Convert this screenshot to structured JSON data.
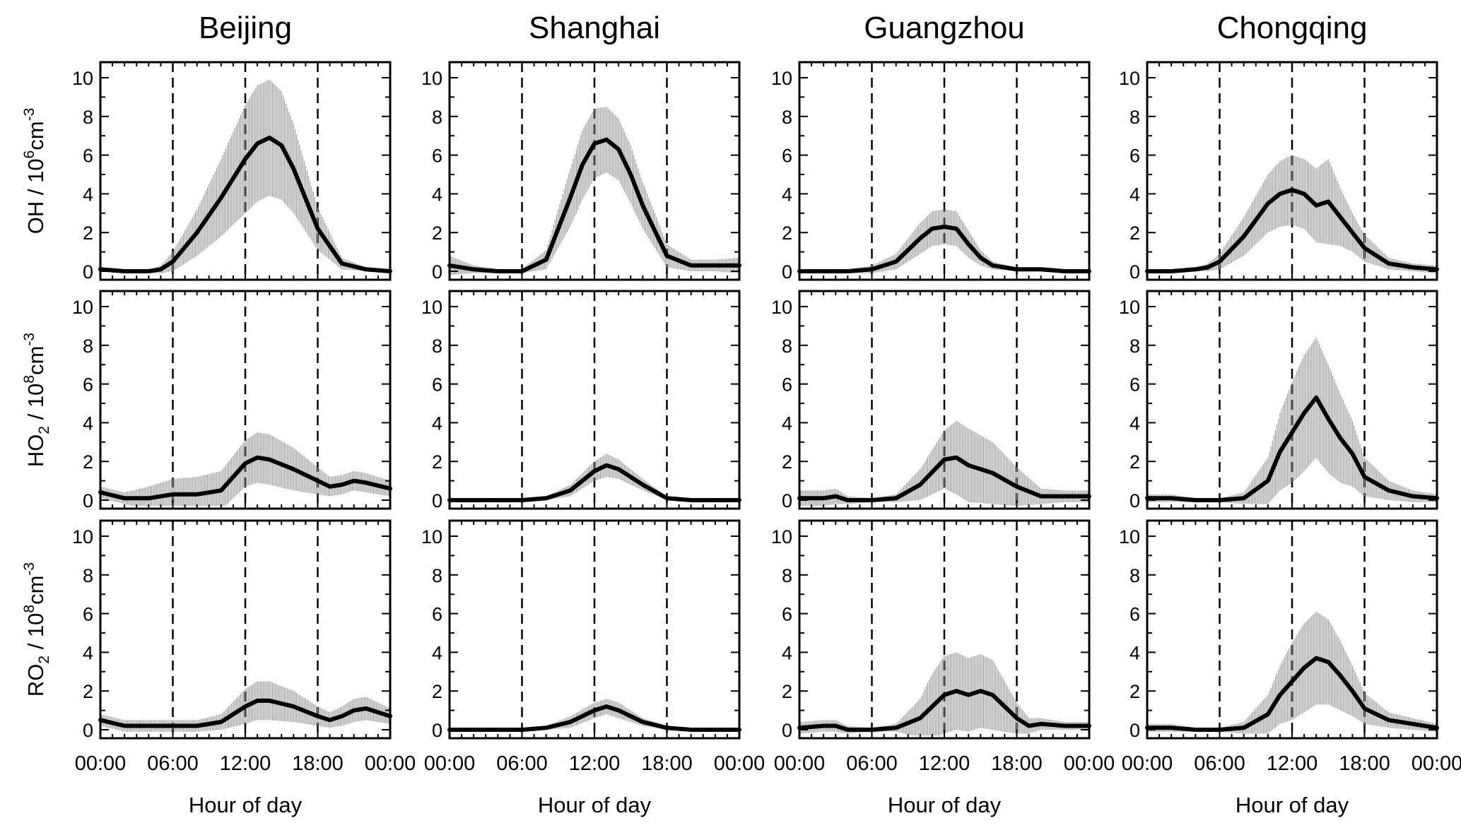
{
  "figure": {
    "columns": [
      "Beijing",
      "Shanghai",
      "Guangzhou",
      "Chongqing"
    ],
    "x_tick_labels": [
      "00:00",
      "06:00",
      "12:00",
      "18:00",
      "00:00"
    ],
    "xlabel": "Hour of day",
    "row_labels": [
      {
        "species": "OH",
        "sub": "",
        "unit_text": " / 10",
        "exp": "6",
        "unit_tail": "cm",
        "unit_exp": "-3"
      },
      {
        "species": "HO",
        "sub": "2",
        "unit_text": " / 10",
        "exp": "8",
        "unit_tail": "cm",
        "unit_exp": "-3"
      },
      {
        "species": "RO",
        "sub": "2",
        "unit_text": " / 10",
        "exp": "8",
        "unit_tail": "cm",
        "unit_exp": "-3"
      }
    ],
    "y_tick_labels": [
      "0",
      "2",
      "4",
      "6",
      "8",
      "10"
    ],
    "colors": {
      "line": "#000000",
      "errorbar": "#8a8a8a",
      "guide": "#000000"
    }
  },
  "chart_data": [
    {
      "type": "line",
      "city": "Beijing",
      "species": "OH",
      "unit": "10^6 cm^-3",
      "xlim": [
        0,
        24
      ],
      "ylim": [
        0,
        10
      ],
      "vlines": [
        6,
        12,
        18
      ],
      "x": [
        0,
        2,
        4,
        5,
        6,
        8,
        10,
        12,
        13,
        14,
        15,
        16,
        18,
        20,
        22,
        24
      ],
      "y": [
        0.1,
        0.0,
        0.0,
        0.1,
        0.5,
        2.0,
        3.8,
        5.8,
        6.6,
        6.9,
        6.5,
        5.3,
        2.2,
        0.4,
        0.1,
        0.0
      ],
      "err": [
        0.1,
        0.1,
        0.1,
        0.2,
        0.5,
        1.2,
        2.0,
        2.8,
        3.0,
        3.0,
        2.8,
        2.3,
        1.1,
        0.3,
        0.1,
        0.1
      ]
    },
    {
      "type": "line",
      "city": "Shanghai",
      "species": "OH",
      "unit": "10^6 cm^-3",
      "xlim": [
        0,
        24
      ],
      "ylim": [
        0,
        10
      ],
      "vlines": [
        6,
        12,
        18
      ],
      "x": [
        0,
        2,
        4,
        6,
        8,
        10,
        11,
        12,
        13,
        14,
        15,
        16,
        18,
        20,
        22,
        24
      ],
      "y": [
        0.3,
        0.1,
        0.0,
        0.0,
        0.6,
        3.8,
        5.5,
        6.6,
        6.8,
        6.3,
        5.0,
        3.4,
        0.8,
        0.3,
        0.3,
        0.3
      ],
      "err": [
        0.5,
        0.2,
        0.1,
        0.1,
        0.5,
        1.5,
        1.8,
        1.8,
        1.7,
        1.6,
        1.5,
        1.2,
        0.6,
        0.3,
        0.3,
        0.4
      ]
    },
    {
      "type": "line",
      "city": "Guangzhou",
      "species": "OH",
      "unit": "10^6 cm^-3",
      "xlim": [
        0,
        24
      ],
      "ylim": [
        0,
        10
      ],
      "vlines": [
        6,
        12,
        18
      ],
      "x": [
        0,
        2,
        4,
        6,
        8,
        9,
        10,
        11,
        12,
        13,
        14,
        15,
        16,
        18,
        20,
        22,
        24
      ],
      "y": [
        0.0,
        0.0,
        0.0,
        0.1,
        0.5,
        1.1,
        1.7,
        2.2,
        2.3,
        2.2,
        1.4,
        0.7,
        0.3,
        0.1,
        0.1,
        0.0,
        0.0
      ],
      "err": [
        0.1,
        0.1,
        0.1,
        0.2,
        0.4,
        0.6,
        0.8,
        0.9,
        0.9,
        0.9,
        0.7,
        0.4,
        0.2,
        0.1,
        0.1,
        0.1,
        0.1
      ]
    },
    {
      "type": "line",
      "city": "Chongqing",
      "species": "OH",
      "unit": "10^6 cm^-3",
      "xlim": [
        0,
        24
      ],
      "ylim": [
        0,
        10
      ],
      "vlines": [
        6,
        12,
        18
      ],
      "x": [
        0,
        2,
        4,
        5,
        6,
        8,
        10,
        11,
        12,
        13,
        14,
        15,
        16,
        17,
        18,
        20,
        22,
        24
      ],
      "y": [
        0.0,
        0.0,
        0.1,
        0.2,
        0.5,
        1.8,
        3.5,
        4.0,
        4.2,
        4.0,
        3.4,
        3.6,
        2.8,
        2.0,
        1.2,
        0.4,
        0.2,
        0.1
      ],
      "err": [
        0.1,
        0.1,
        0.1,
        0.2,
        0.4,
        1.0,
        1.5,
        1.7,
        1.8,
        1.8,
        1.9,
        2.2,
        1.5,
        1.0,
        0.7,
        0.3,
        0.2,
        0.2
      ]
    },
    {
      "type": "line",
      "city": "Beijing",
      "species": "HO2",
      "unit": "10^8 cm^-3",
      "xlim": [
        0,
        24
      ],
      "ylim": [
        0,
        10
      ],
      "vlines": [
        6,
        12,
        18
      ],
      "x": [
        0,
        2,
        4,
        6,
        8,
        10,
        11,
        12,
        13,
        14,
        16,
        18,
        19,
        20,
        21,
        22,
        24
      ],
      "y": [
        0.4,
        0.1,
        0.1,
        0.3,
        0.3,
        0.5,
        1.2,
        1.9,
        2.2,
        2.1,
        1.6,
        1.0,
        0.7,
        0.8,
        1.0,
        0.9,
        0.6
      ],
      "err": [
        0.3,
        0.3,
        0.6,
        0.8,
        0.9,
        1.0,
        1.1,
        1.2,
        1.3,
        1.3,
        1.1,
        0.7,
        0.5,
        0.5,
        0.5,
        0.5,
        0.4
      ]
    },
    {
      "type": "line",
      "city": "Shanghai",
      "species": "HO2",
      "unit": "10^8 cm^-3",
      "xlim": [
        0,
        24
      ],
      "ylim": [
        0,
        10
      ],
      "vlines": [
        6,
        12,
        18
      ],
      "x": [
        0,
        2,
        4,
        6,
        8,
        10,
        12,
        13,
        14,
        16,
        18,
        20,
        22,
        24
      ],
      "y": [
        0.0,
        0.0,
        0.0,
        0.0,
        0.1,
        0.5,
        1.5,
        1.8,
        1.6,
        0.8,
        0.1,
        0.0,
        0.0,
        0.0
      ],
      "err": [
        0.05,
        0.05,
        0.05,
        0.05,
        0.1,
        0.3,
        0.5,
        0.6,
        0.5,
        0.3,
        0.1,
        0.05,
        0.05,
        0.05
      ]
    },
    {
      "type": "line",
      "city": "Guangzhou",
      "species": "HO2",
      "unit": "10^8 cm^-3",
      "xlim": [
        0,
        24
      ],
      "ylim": [
        0,
        10
      ],
      "vlines": [
        6,
        12,
        18
      ],
      "x": [
        0,
        2,
        3,
        4,
        6,
        8,
        10,
        12,
        13,
        14,
        16,
        18,
        20,
        22,
        24
      ],
      "y": [
        0.1,
        0.1,
        0.2,
        0.0,
        0.0,
        0.1,
        0.8,
        2.1,
        2.2,
        1.8,
        1.4,
        0.7,
        0.2,
        0.2,
        0.2
      ],
      "err": [
        0.4,
        0.4,
        0.4,
        0.2,
        0.1,
        0.2,
        0.8,
        1.5,
        1.9,
        1.9,
        1.6,
        1.0,
        0.4,
        0.3,
        0.3
      ]
    },
    {
      "type": "line",
      "city": "Chongqing",
      "species": "HO2",
      "unit": "10^8 cm^-3",
      "xlim": [
        0,
        24
      ],
      "ylim": [
        0,
        10
      ],
      "vlines": [
        6,
        12,
        18
      ],
      "x": [
        0,
        2,
        4,
        6,
        8,
        10,
        11,
        12,
        13,
        14,
        15,
        16,
        17,
        18,
        20,
        22,
        24
      ],
      "y": [
        0.1,
        0.1,
        0.0,
        0.0,
        0.1,
        1.0,
        2.5,
        3.5,
        4.5,
        5.3,
        4.2,
        3.2,
        2.4,
        1.2,
        0.5,
        0.2,
        0.1
      ],
      "err": [
        0.2,
        0.2,
        0.1,
        0.1,
        0.3,
        1.2,
        2.0,
        2.6,
        3.0,
        3.1,
        2.8,
        2.3,
        1.7,
        1.0,
        0.5,
        0.3,
        0.2
      ]
    },
    {
      "type": "line",
      "city": "Beijing",
      "species": "RO2",
      "unit": "10^8 cm^-3",
      "xlim": [
        0,
        24
      ],
      "ylim": [
        0,
        10
      ],
      "vlines": [
        6,
        12,
        18
      ],
      "x": [
        0,
        2,
        4,
        6,
        8,
        10,
        12,
        13,
        14,
        16,
        18,
        19,
        20,
        21,
        22,
        24
      ],
      "y": [
        0.5,
        0.2,
        0.2,
        0.2,
        0.2,
        0.4,
        1.2,
        1.5,
        1.5,
        1.2,
        0.7,
        0.5,
        0.7,
        1.0,
        1.1,
        0.7
      ],
      "err": [
        0.3,
        0.3,
        0.3,
        0.3,
        0.3,
        0.4,
        0.9,
        1.0,
        1.0,
        0.8,
        0.5,
        0.4,
        0.5,
        0.6,
        0.6,
        0.4
      ]
    },
    {
      "type": "line",
      "city": "Shanghai",
      "species": "RO2",
      "unit": "10^8 cm^-3",
      "xlim": [
        0,
        24
      ],
      "ylim": [
        0,
        10
      ],
      "vlines": [
        6,
        12,
        18
      ],
      "x": [
        0,
        2,
        4,
        6,
        8,
        10,
        12,
        13,
        14,
        16,
        18,
        20,
        22,
        24
      ],
      "y": [
        0.0,
        0.0,
        0.0,
        0.0,
        0.1,
        0.4,
        1.0,
        1.2,
        1.0,
        0.4,
        0.1,
        0.0,
        0.0,
        0.0
      ],
      "err": [
        0.05,
        0.05,
        0.05,
        0.05,
        0.1,
        0.3,
        0.4,
        0.4,
        0.4,
        0.2,
        0.1,
        0.05,
        0.05,
        0.05
      ]
    },
    {
      "type": "line",
      "city": "Guangzhou",
      "species": "RO2",
      "unit": "10^8 cm^-3",
      "xlim": [
        0,
        24
      ],
      "ylim": [
        0,
        10
      ],
      "vlines": [
        6,
        12,
        18
      ],
      "x": [
        0,
        2,
        3,
        4,
        6,
        8,
        10,
        11,
        12,
        13,
        14,
        15,
        16,
        18,
        19,
        20,
        22,
        24
      ],
      "y": [
        0.1,
        0.2,
        0.2,
        0.0,
        0.0,
        0.1,
        0.6,
        1.2,
        1.8,
        2.0,
        1.8,
        2.0,
        1.8,
        0.6,
        0.2,
        0.3,
        0.2,
        0.2
      ],
      "err": [
        0.3,
        0.3,
        0.3,
        0.2,
        0.1,
        0.2,
        1.0,
        1.7,
        2.0,
        2.0,
        1.9,
        1.9,
        1.8,
        0.8,
        0.4,
        0.3,
        0.2,
        0.2
      ]
    },
    {
      "type": "line",
      "city": "Chongqing",
      "species": "RO2",
      "unit": "10^8 cm^-3",
      "xlim": [
        0,
        24
      ],
      "ylim": [
        0,
        10
      ],
      "vlines": [
        6,
        12,
        18
      ],
      "x": [
        0,
        2,
        4,
        6,
        8,
        10,
        11,
        12,
        13,
        14,
        15,
        16,
        17,
        18,
        20,
        22,
        24
      ],
      "y": [
        0.1,
        0.1,
        0.0,
        0.0,
        0.1,
        0.8,
        1.8,
        2.5,
        3.2,
        3.7,
        3.5,
        2.8,
        2.0,
        1.1,
        0.5,
        0.3,
        0.1
      ],
      "err": [
        0.2,
        0.2,
        0.1,
        0.1,
        0.3,
        1.0,
        1.5,
        2.0,
        2.3,
        2.4,
        2.2,
        1.8,
        1.3,
        0.8,
        0.4,
        0.3,
        0.2
      ]
    }
  ]
}
